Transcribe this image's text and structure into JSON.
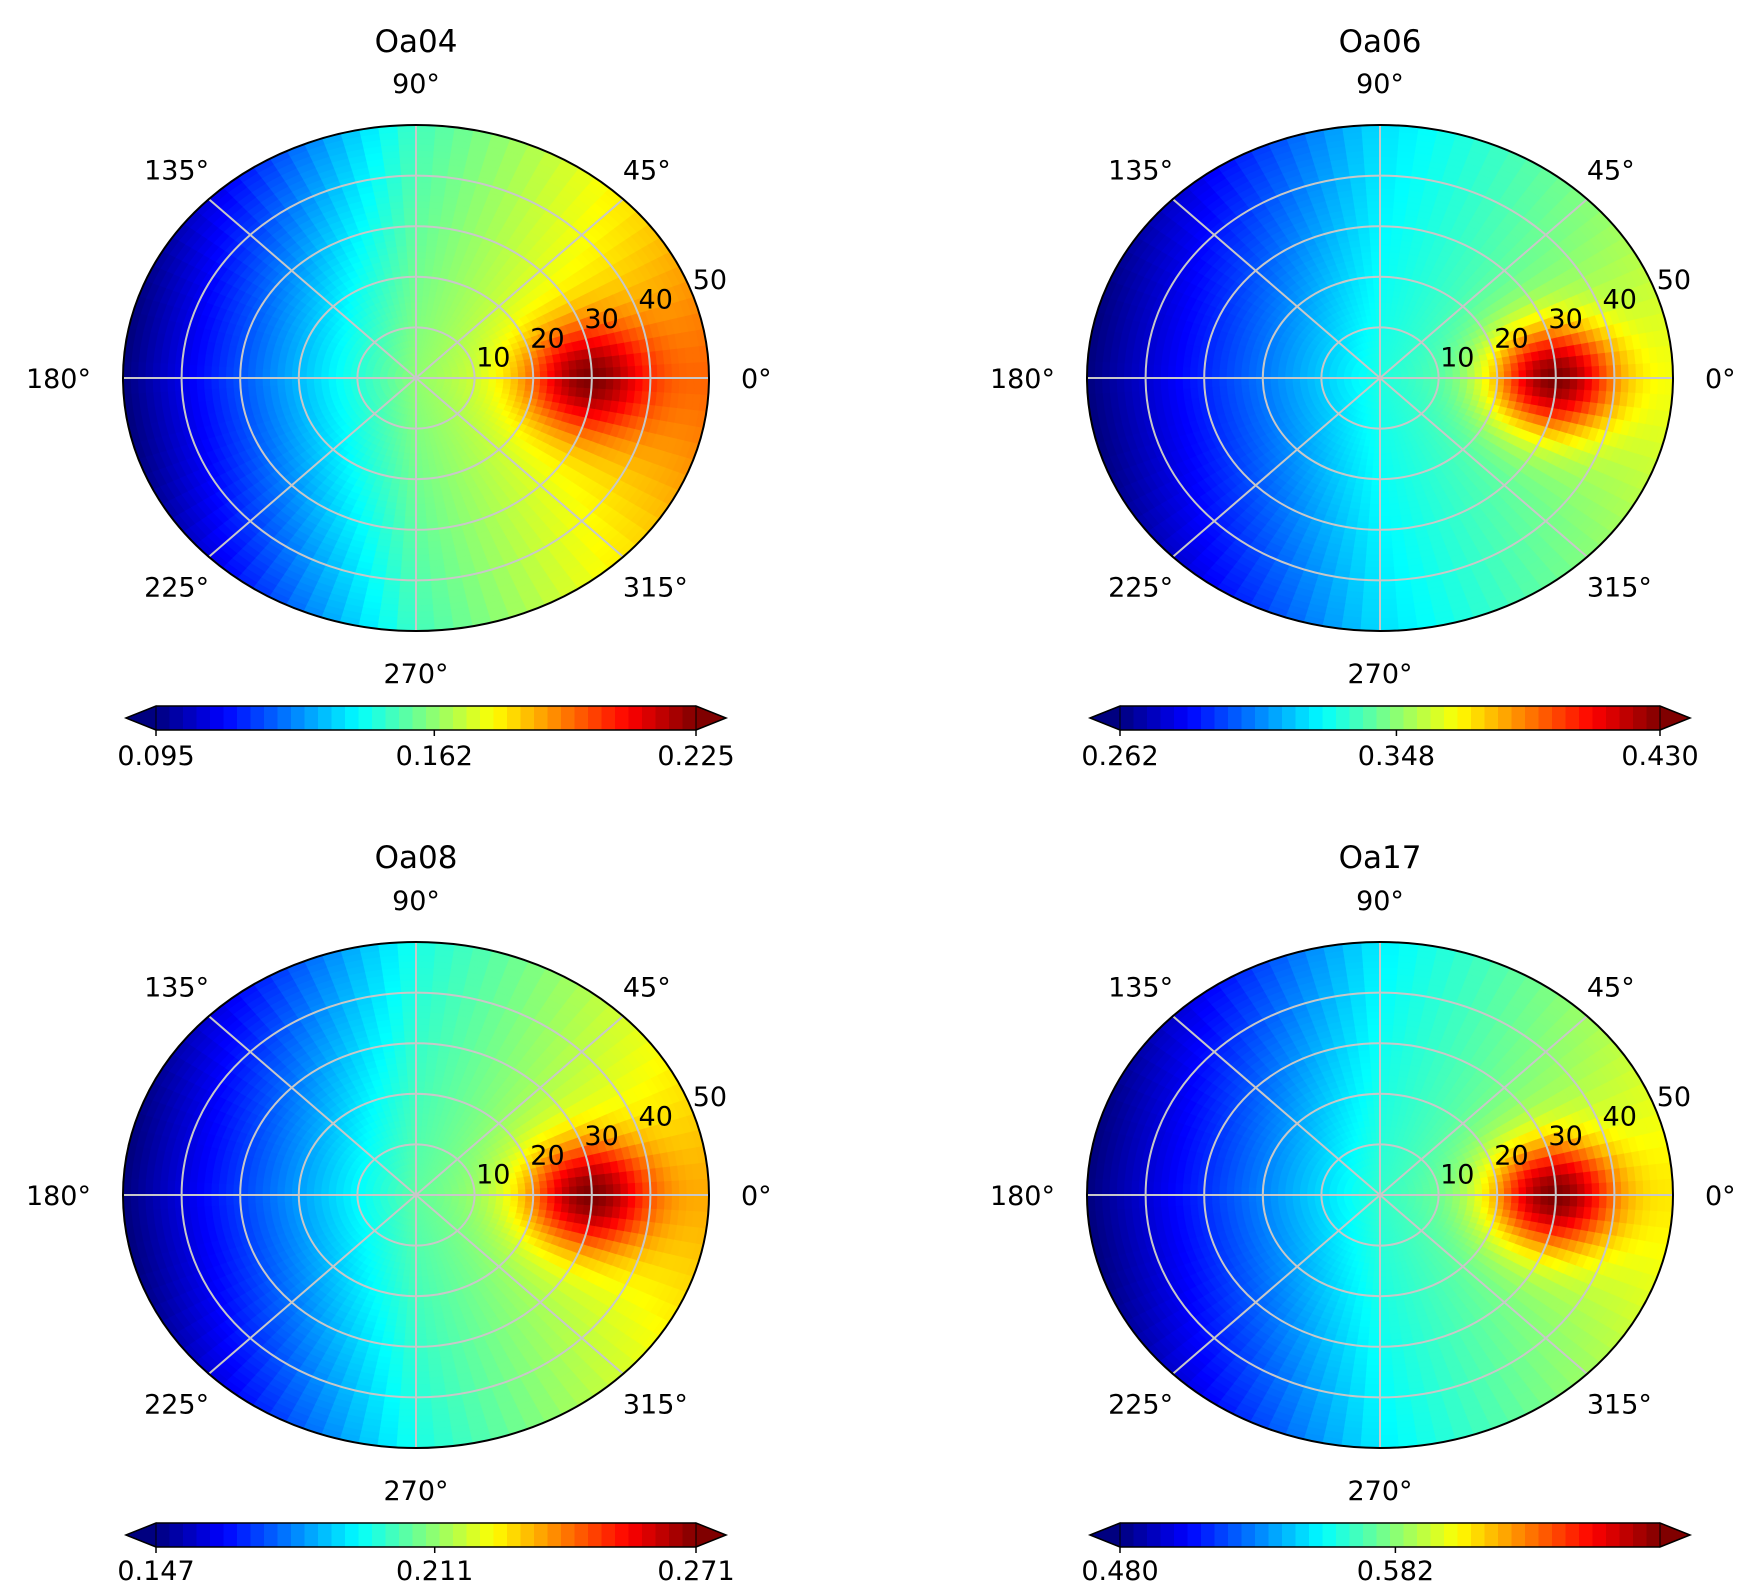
{
  "chart_data": [
    {
      "type": "heatmap",
      "projection": "polar",
      "title": "Oa04",
      "angle_labels": [
        "0°",
        "45°",
        "90°",
        "135°",
        "180°",
        "225°",
        "270°",
        "315°"
      ],
      "radial_ticks": [
        "10",
        "20",
        "30",
        "40",
        "50"
      ],
      "rlim": [
        0,
        50
      ],
      "peak": {
        "angle_deg": 0,
        "radius": 30
      },
      "colorbar": {
        "min": 0.095,
        "max": 0.225,
        "ticks": [
          "0.095",
          "0.162",
          "0.225"
        ],
        "extend": "both",
        "colormap": "jet"
      },
      "value_at_center": 0.162,
      "value_at_peak": 0.225,
      "value_at_far_edge": 0.095
    },
    {
      "type": "heatmap",
      "projection": "polar",
      "title": "Oa06",
      "angle_labels": [
        "0°",
        "45°",
        "90°",
        "135°",
        "180°",
        "225°",
        "270°",
        "315°"
      ],
      "radial_ticks": [
        "10",
        "20",
        "30",
        "40",
        "50"
      ],
      "rlim": [
        0,
        50
      ],
      "peak": {
        "angle_deg": 0,
        "radius": 30
      },
      "colorbar": {
        "min": 0.262,
        "max": 0.43,
        "ticks": [
          "0.262",
          "0.348",
          "0.430"
        ],
        "extend": "both",
        "colormap": "jet"
      },
      "value_at_center": 0.33,
      "value_at_peak": 0.43,
      "value_at_far_edge": 0.262
    },
    {
      "type": "heatmap",
      "projection": "polar",
      "title": "Oa08",
      "angle_labels": [
        "0°",
        "45°",
        "90°",
        "135°",
        "180°",
        "225°",
        "270°",
        "315°"
      ],
      "radial_ticks": [
        "10",
        "20",
        "30",
        "40",
        "50"
      ],
      "rlim": [
        0,
        50
      ],
      "peak": {
        "angle_deg": 0,
        "radius": 30
      },
      "colorbar": {
        "min": 0.147,
        "max": 0.271,
        "ticks": [
          "0.147",
          "0.211",
          "0.271"
        ],
        "extend": "both",
        "colormap": "jet"
      },
      "value_at_center": 0.205,
      "value_at_peak": 0.271,
      "value_at_far_edge": 0.147
    },
    {
      "type": "heatmap",
      "projection": "polar",
      "title": "Oa17",
      "angle_labels": [
        "0°",
        "45°",
        "90°",
        "135°",
        "180°",
        "225°",
        "270°",
        "315°"
      ],
      "radial_ticks": [
        "10",
        "20",
        "30",
        "40",
        "50"
      ],
      "rlim": [
        0,
        50
      ],
      "peak": {
        "angle_deg": 0,
        "radius": 30
      },
      "colorbar": {
        "min": 0.48,
        "max": 0.68,
        "ticks": [
          "0.480",
          "0.582"
        ],
        "extend": "both",
        "colormap": "jet"
      },
      "value_at_center": 0.565,
      "value_at_peak": 0.68,
      "value_at_far_edge": 0.48
    }
  ]
}
